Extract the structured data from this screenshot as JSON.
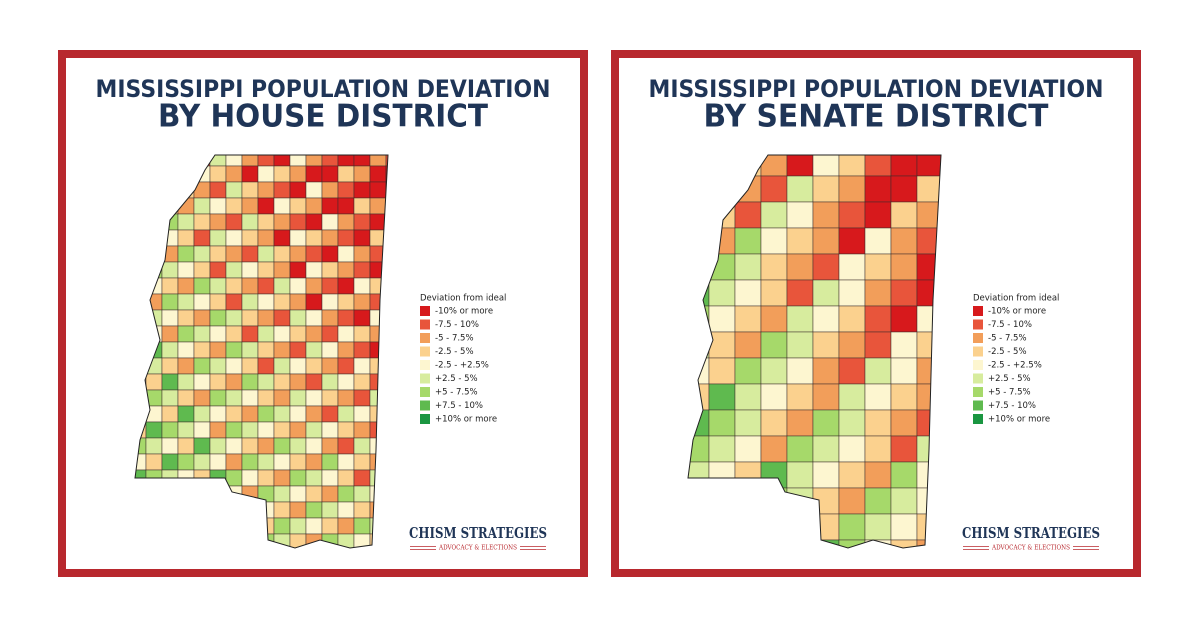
{
  "panels": [
    {
      "title_line1": "MISSISSIPPI POPULATION DEVIATION",
      "title_line2": "BY HOUSE DISTRICT",
      "legend": {
        "title": "Deviation from ideal",
        "items": [
          {
            "label": "-10% or more",
            "color": "#d7191c"
          },
          {
            "label": "-7.5 - 10%",
            "color": "#e8553b"
          },
          {
            "label": "-5 - 7.5%",
            "color": "#f29e5a"
          },
          {
            "label": "-2.5 - 5%",
            "color": "#fbd18e"
          },
          {
            "label": "-2.5 - +2.5%",
            "color": "#fdf6d0"
          },
          {
            "label": "+2.5 - 5%",
            "color": "#d7ec9e"
          },
          {
            "label": "+5 - 7.5%",
            "color": "#a6d96a"
          },
          {
            "label": "+7.5 - 10%",
            "color": "#5fba4f"
          },
          {
            "label": "+10% or more",
            "color": "#1a9641"
          }
        ]
      },
      "logo": {
        "name": "CHISM STRATEGIES",
        "tagline": "ADVOCACY & ELECTIONS"
      }
    },
    {
      "title_line1": "MISSISSIPPI POPULATION DEVIATION",
      "title_line2": "BY SENATE DISTRICT",
      "legend": {
        "title": "Deviation from ideal",
        "items": [
          {
            "label": "-10% or more",
            "color": "#d7191c"
          },
          {
            "label": "-7.5 - 10%",
            "color": "#e8553b"
          },
          {
            "label": "-5 - 7.5%",
            "color": "#f29e5a"
          },
          {
            "label": "-2.5 - 5%",
            "color": "#fbd18e"
          },
          {
            "label": "-2.5 - +2.5%",
            "color": "#fdf6d0"
          },
          {
            "label": "+2.5 - 5%",
            "color": "#d7ec9e"
          },
          {
            "label": "+5 - 7.5%",
            "color": "#a6d96a"
          },
          {
            "label": "+7.5 - 10%",
            "color": "#5fba4f"
          },
          {
            "label": "+10% or more",
            "color": "#1a9641"
          }
        ]
      },
      "logo": {
        "name": "CHISM STRATEGIES",
        "tagline": "ADVOCACY & ELECTIONS"
      }
    }
  ]
}
